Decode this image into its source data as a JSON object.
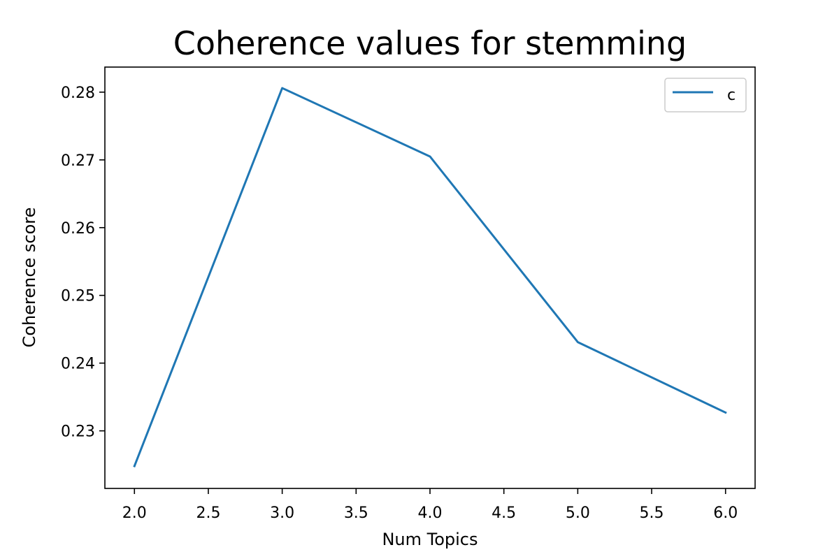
{
  "chart_data": {
    "type": "line",
    "title": "Coherence values for stemming",
    "xlabel": "Num Topics",
    "ylabel": "Coherence score",
    "x": [
      2,
      3,
      4,
      5,
      6
    ],
    "series": [
      {
        "name": "c",
        "values": [
          0.2248,
          0.2806,
          0.2705,
          0.2431,
          0.2327
        ]
      }
    ],
    "xlim": [
      1.8,
      6.2
    ],
    "ylim": [
      0.2215,
      0.2837
    ],
    "xticks": [
      "2.0",
      "2.5",
      "3.0",
      "3.5",
      "4.0",
      "4.5",
      "5.0",
      "5.5",
      "6.0"
    ],
    "yticks": [
      "0.23",
      "0.24",
      "0.25",
      "0.26",
      "0.27",
      "0.28"
    ],
    "grid": false,
    "legend": "top-right",
    "colors": {
      "series": "#1f77b4",
      "axes": "#000000"
    }
  }
}
